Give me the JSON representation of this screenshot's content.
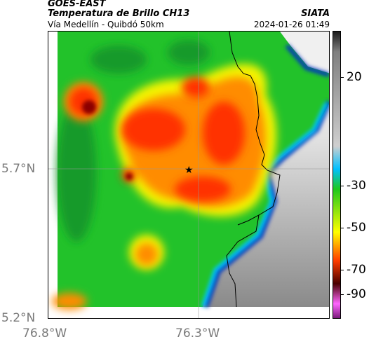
{
  "header": {
    "satellite": "GOES-EAST",
    "product": "Temperatura de Brillo CH13",
    "region": "Vía Medellín - Quibdó 50km",
    "organization": "SIATA",
    "datetime": "2024-01-26 01:49"
  },
  "axes": {
    "y_ticks": [
      "5.7°N",
      "5.2°N"
    ],
    "x_ticks": [
      "76.8°W",
      "76.3°W"
    ]
  },
  "colorbar": {
    "ticks": [
      "20",
      "-30",
      "-50",
      "-70",
      "-90"
    ],
    "colors": [
      "#1a1a1a",
      "#7f7f7f",
      "#cfcfcf",
      "#00c0ff",
      "#1ec81e",
      "#ffff00",
      "#ff3c00",
      "#4a0000",
      "#ff66ff",
      "#7a1a7a"
    ]
  },
  "map": {
    "marker": "star-marker",
    "colors": {
      "green": "#22c22a",
      "dark_green": "#159a2a",
      "yellow": "#f4f400",
      "orange": "#ff8c00",
      "red": "#ff3000",
      "dark_red": "#8c0000",
      "cyan": "#00c8ff",
      "blue": "#0030c0",
      "white": "#f5f5f5",
      "gray": "#9b9b9b"
    }
  }
}
